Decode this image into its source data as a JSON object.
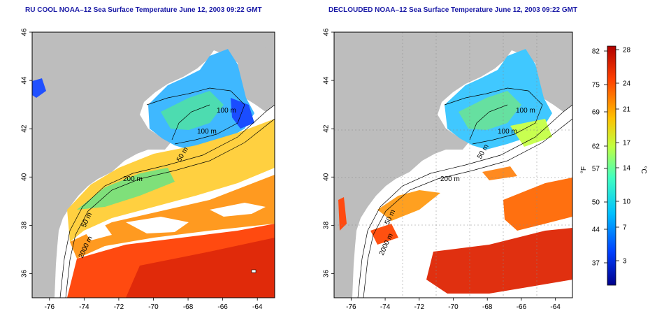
{
  "panels": [
    {
      "id": "left",
      "title": "RU COOL NOAA–12 Sea Surface Temperature June 12, 2003 09:22 GMT",
      "labels": [
        "100 m",
        "100 m",
        "50 m",
        "200 m",
        "50 m",
        "2000 m"
      ]
    },
    {
      "id": "right",
      "title": "DECLOUDED NOAA–12 Sea Surface Temperature June 12, 2003 09:22 GMT",
      "labels": [
        "100 m",
        "100 m",
        "50 m",
        "200 m",
        "50 m",
        "2000 m"
      ]
    }
  ],
  "x_ticks": [
    "-76",
    "-74",
    "-72",
    "-70",
    "-68",
    "-66",
    "-64"
  ],
  "y_ticks": [
    "36",
    "38",
    "40",
    "42",
    "44",
    "46"
  ],
  "colorbar": {
    "fahrenheit_label": "°F",
    "celsius_label": "°C",
    "fahrenheit_ticks": [
      "82",
      "75",
      "69",
      "62",
      "57",
      "50",
      "44",
      "37"
    ],
    "celsius_ticks": [
      "28",
      "24",
      "21",
      "17",
      "14",
      "10",
      "7",
      "3"
    ],
    "colors": [
      "#00008b",
      "#0040ff",
      "#00c0ff",
      "#40ffc0",
      "#c0ff40",
      "#ffc000",
      "#ff4000",
      "#b00000"
    ]
  }
}
